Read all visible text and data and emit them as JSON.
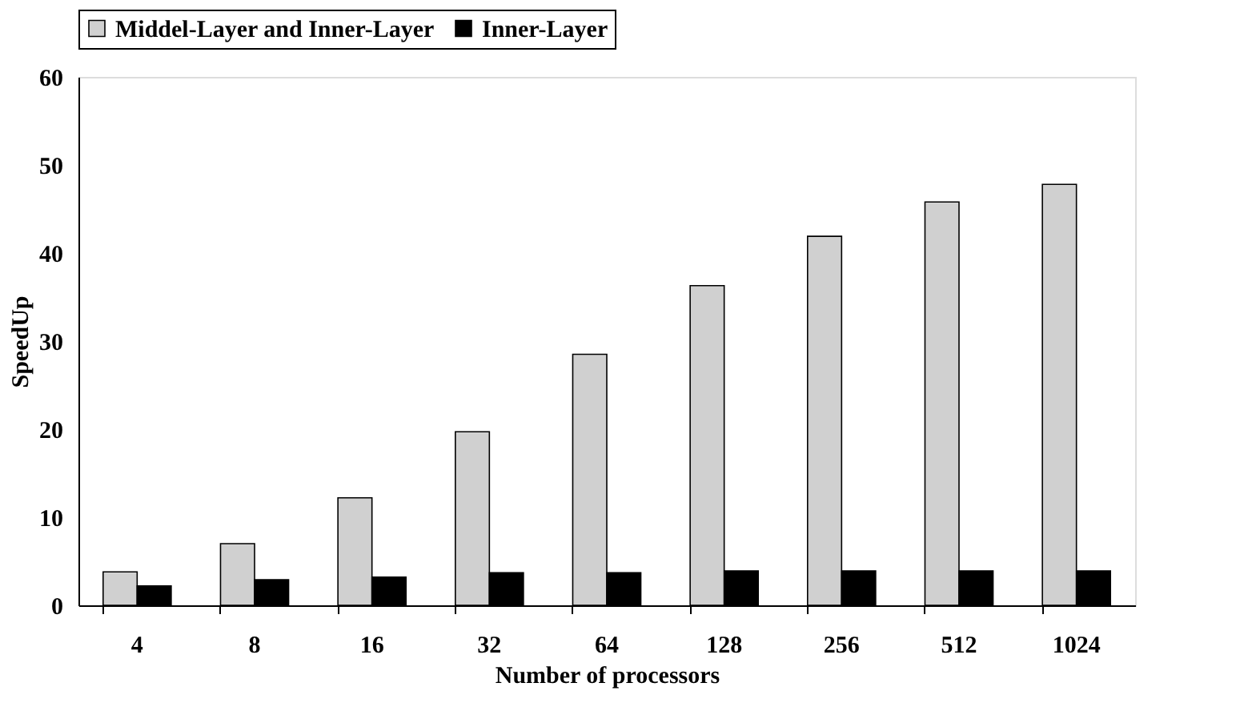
{
  "chart_data": {
    "type": "bar",
    "xlabel": "Number of processors",
    "ylabel": "SpeedUp",
    "categories": [
      "4",
      "8",
      "16",
      "32",
      "64",
      "128",
      "256",
      "512",
      "1024"
    ],
    "series": [
      {
        "name": "Middel-Layer and Inner-Layer",
        "color": "#d0d0d0",
        "values": [
          3.8,
          7.0,
          12.2,
          19.7,
          28.5,
          36.3,
          41.9,
          45.8,
          47.8
        ]
      },
      {
        "name": "Inner-Layer",
        "color": "#000000",
        "values": [
          2.2,
          2.9,
          3.2,
          3.7,
          3.7,
          3.9,
          3.9,
          3.9,
          3.9
        ]
      }
    ],
    "ylim": [
      0,
      60
    ],
    "yticks": [
      0,
      10,
      20,
      30,
      40,
      50,
      60
    ],
    "grid": false,
    "legend": "top"
  }
}
